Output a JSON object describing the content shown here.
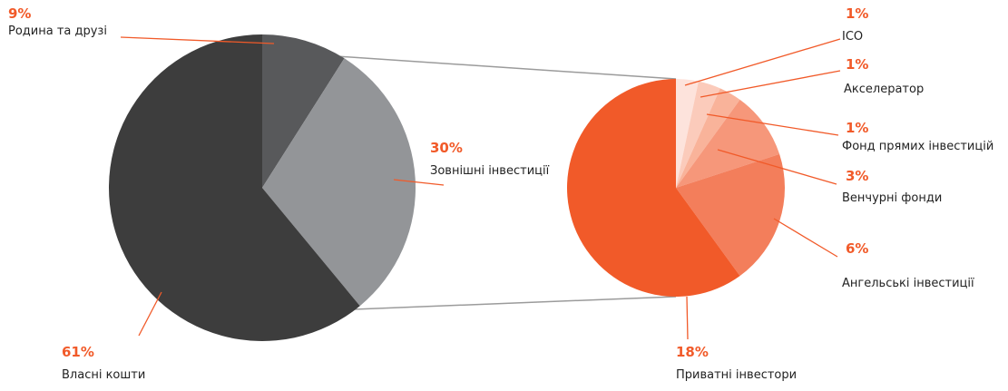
{
  "chart_data": [
    {
      "type": "pie",
      "categories": [
        "Родина та друзі",
        "Зовнішні інвестиції",
        "Власні кошти"
      ],
      "values": [
        9,
        30,
        61
      ],
      "labels": [
        "9%",
        "30%",
        "61%"
      ],
      "colors": [
        "#58595b",
        "#939598",
        "#3d3d3d"
      ]
    },
    {
      "type": "pie",
      "categories": [
        "ICO",
        "Акселератор",
        "Фонд прямих інвестицій",
        "Венчурні фонди",
        "Ангельські інвестиції",
        "Приватні інвестори"
      ],
      "values": [
        1,
        1,
        1,
        3,
        6,
        18
      ],
      "labels": [
        "1%",
        "1%",
        "1%",
        "3%",
        "6%",
        "18%"
      ],
      "colors": [
        "#fde3dc",
        "#fbcbbb",
        "#f9b39a",
        "#f6977a",
        "#f37e5b",
        "#f15a29"
      ]
    }
  ],
  "colors": {
    "accent": "#f15a29",
    "connector": "#9b9b9b",
    "text": "#222222"
  }
}
